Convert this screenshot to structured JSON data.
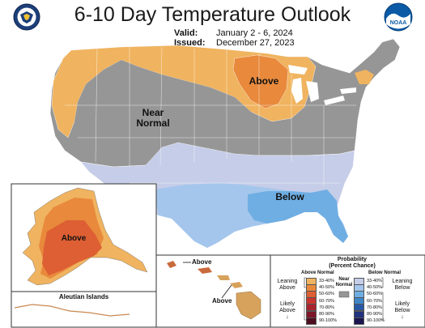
{
  "header": {
    "title": "6-10 Day Temperature Outlook",
    "valid_label": "Valid:",
    "valid_value": "January 2 - 6, 2024",
    "issued_label": "Issued:",
    "issued_value": "December 27, 2023"
  },
  "logos": {
    "left": {
      "icon": "department-of-commerce-seal-icon"
    },
    "right": {
      "icon": "noaa-logo-icon",
      "text": "NOAA"
    }
  },
  "map_labels": {
    "conus_above": "Above",
    "conus_near": "Near",
    "conus_normal": "Normal",
    "conus_below": "Below",
    "alaska_above": "Above",
    "hawaii_above_1": "Above",
    "hawaii_above_2": "Above",
    "aleutian": "Aleutian Islands"
  },
  "legend": {
    "title_line1": "Probability",
    "title_line2": "(Percent Chance)",
    "above_header": "Above Normal",
    "below_header": "Below Normal",
    "near_label_1": "Near",
    "near_label_2": "Normal",
    "leaning_above_1": "Leaning",
    "leaning_above_2": "Above",
    "likely_above_1": "Likely",
    "likely_above_2": "Above",
    "leaning_below_1": "Leaning",
    "leaning_below_2": "Below",
    "likely_below_1": "Likely",
    "likely_below_2": "Below",
    "above_bins": [
      {
        "label": "33-40%",
        "color": "#f0b35f"
      },
      {
        "label": "40-50%",
        "color": "#e8893c"
      },
      {
        "label": "50-60%",
        "color": "#dd5f33"
      },
      {
        "label": "60-70%",
        "color": "#c8352e"
      },
      {
        "label": "70-80%",
        "color": "#a8222c"
      },
      {
        "label": "80-90%",
        "color": "#7d1629"
      },
      {
        "label": "90-100%",
        "color": "#4e0e1f"
      }
    ],
    "below_bins": [
      {
        "label": "33-40%",
        "color": "#c5cde8"
      },
      {
        "label": "40-50%",
        "color": "#a4c6ec"
      },
      {
        "label": "50-60%",
        "color": "#6faee3"
      },
      {
        "label": "60-70%",
        "color": "#3f86c8"
      },
      {
        "label": "70-80%",
        "color": "#2858a5"
      },
      {
        "label": "80-90%",
        "color": "#22337e"
      },
      {
        "label": "90-100%",
        "color": "#1a1550"
      }
    ],
    "near_color": "#969696"
  },
  "colors": {
    "above_light": "#f0b35f",
    "above_mid": "#e8893c",
    "above_strong": "#dd5f33",
    "near": "#969696",
    "below_light": "#c5cde8",
    "below_mid": "#a4c6ec",
    "below_strong": "#6faee3"
  }
}
